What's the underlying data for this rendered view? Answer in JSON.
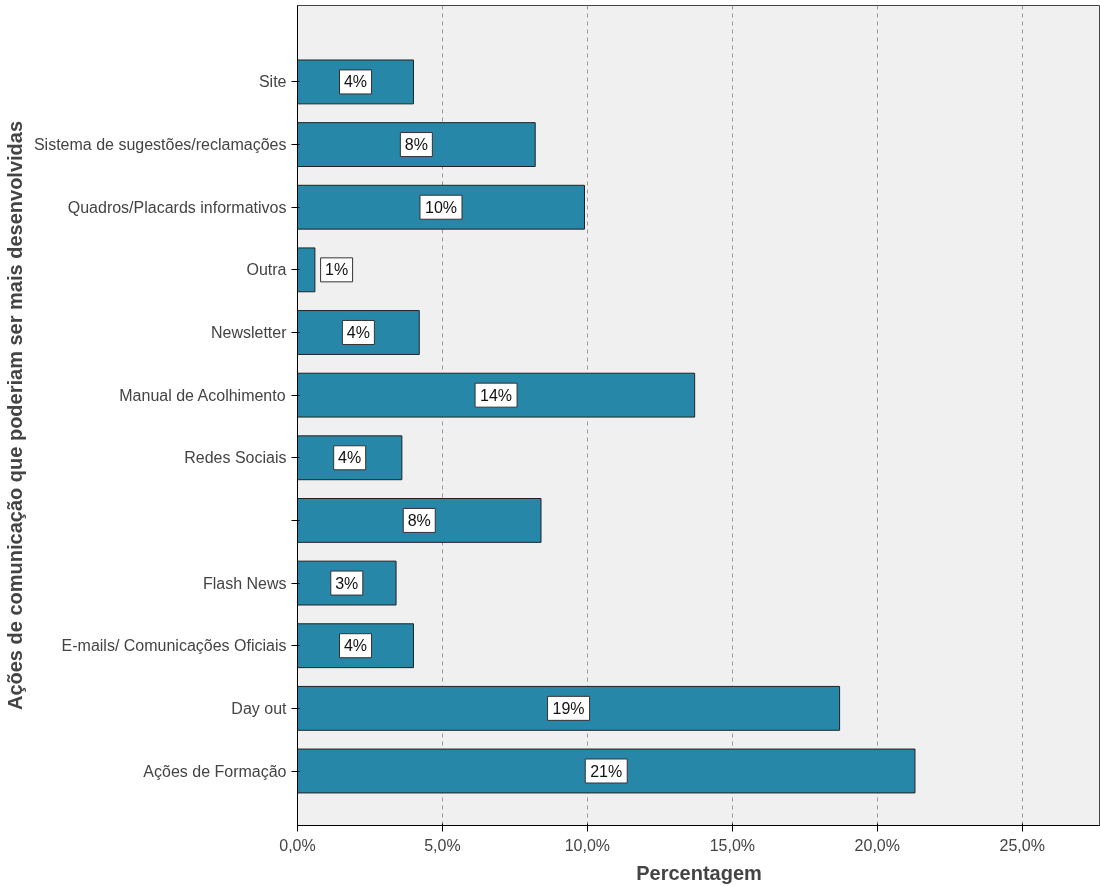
{
  "chart_data": {
    "type": "bar",
    "orientation": "horizontal",
    "xlabel": "Percentagem",
    "ylabel": "Ações de comunicação que poderiam ser mais desenvolvidas",
    "categories": [
      "Site",
      "Sistema de sugestões/reclamações",
      "Quadros/Placards informativos",
      "Outra",
      "Newsletter",
      "Manual de Acolhimento",
      "Redes Sociais",
      null,
      "Flash News",
      "E-mails/ Comunicações Oficiais",
      "Day out",
      "Ações de Formação"
    ],
    "values": [
      4.0,
      8.2,
      9.9,
      0.6,
      4.2,
      13.7,
      3.6,
      8.4,
      3.4,
      4.0,
      18.7,
      21.3
    ],
    "value_labels": [
      "4%",
      "8%",
      "10%",
      "1%",
      "4%",
      "14%",
      "4%",
      "8%",
      "3%",
      "4%",
      "19%",
      "21%"
    ],
    "color": "#2787a8",
    "xlim": [
      0,
      27.7
    ],
    "xticks": [
      {
        "value": 0,
        "label": "0,0%"
      },
      {
        "value": 5,
        "label": "5,0%"
      },
      {
        "value": 10,
        "label": "10,0%"
      },
      {
        "value": 15,
        "label": "15,0%"
      },
      {
        "value": 20,
        "label": "20,0%"
      },
      {
        "value": 25,
        "label": "25,0%"
      }
    ],
    "grid": "x"
  }
}
